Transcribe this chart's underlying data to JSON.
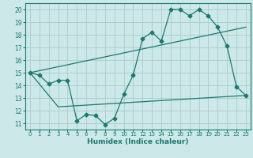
{
  "title": "",
  "xlabel": "Humidex (Indice chaleur)",
  "bg_color": "#cce8e8",
  "line_color": "#1a7a6e",
  "grid_color": "#aacccc",
  "xlim": [
    -0.5,
    23.5
  ],
  "ylim": [
    10.5,
    20.5
  ],
  "xticks": [
    0,
    1,
    2,
    3,
    4,
    5,
    6,
    7,
    8,
    9,
    10,
    11,
    12,
    13,
    14,
    15,
    16,
    17,
    18,
    19,
    20,
    21,
    22,
    23
  ],
  "yticks": [
    11,
    12,
    13,
    14,
    15,
    16,
    17,
    18,
    19,
    20
  ],
  "line1_x": [
    0,
    1,
    2,
    3,
    4,
    5,
    6,
    7,
    8,
    9,
    10,
    11,
    12,
    13,
    14,
    15,
    16,
    17,
    18,
    19,
    20,
    21,
    22,
    23
  ],
  "line1_y": [
    15.0,
    14.8,
    14.1,
    14.4,
    14.4,
    11.2,
    11.7,
    11.6,
    10.9,
    11.4,
    13.3,
    14.8,
    17.7,
    18.2,
    17.5,
    20.0,
    20.0,
    19.5,
    20.0,
    19.5,
    18.6,
    17.1,
    13.9,
    13.2
  ],
  "line2_x": [
    0,
    23
  ],
  "line2_y": [
    15.0,
    18.6
  ],
  "line3_x": [
    0,
    3,
    23
  ],
  "line3_y": [
    15.0,
    12.3,
    13.2
  ]
}
